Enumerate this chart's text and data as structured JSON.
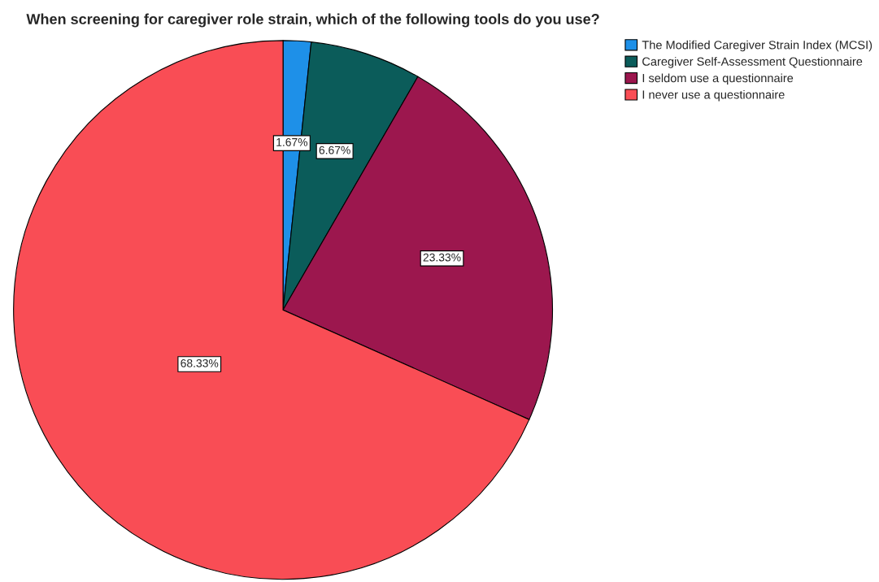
{
  "chart_data": {
    "type": "pie",
    "title": "When screening for caregiver role strain, which of the following tools do you use?",
    "categories": [
      "The Modified Caregiver Strain Index (MCSI)",
      "Caregiver Self-Assessment Questionnaire",
      "I seldom use a questionnaire",
      "I never use a questionnaire"
    ],
    "values": [
      1.67,
      6.67,
      23.33,
      68.33
    ],
    "colors": [
      "#1e90e8",
      "#0b5c5a",
      "#9c174e",
      "#f94d55"
    ],
    "value_labels": [
      "1.67%",
      "6.67%",
      "23.33%",
      "68.33%"
    ],
    "legend": "top right"
  }
}
